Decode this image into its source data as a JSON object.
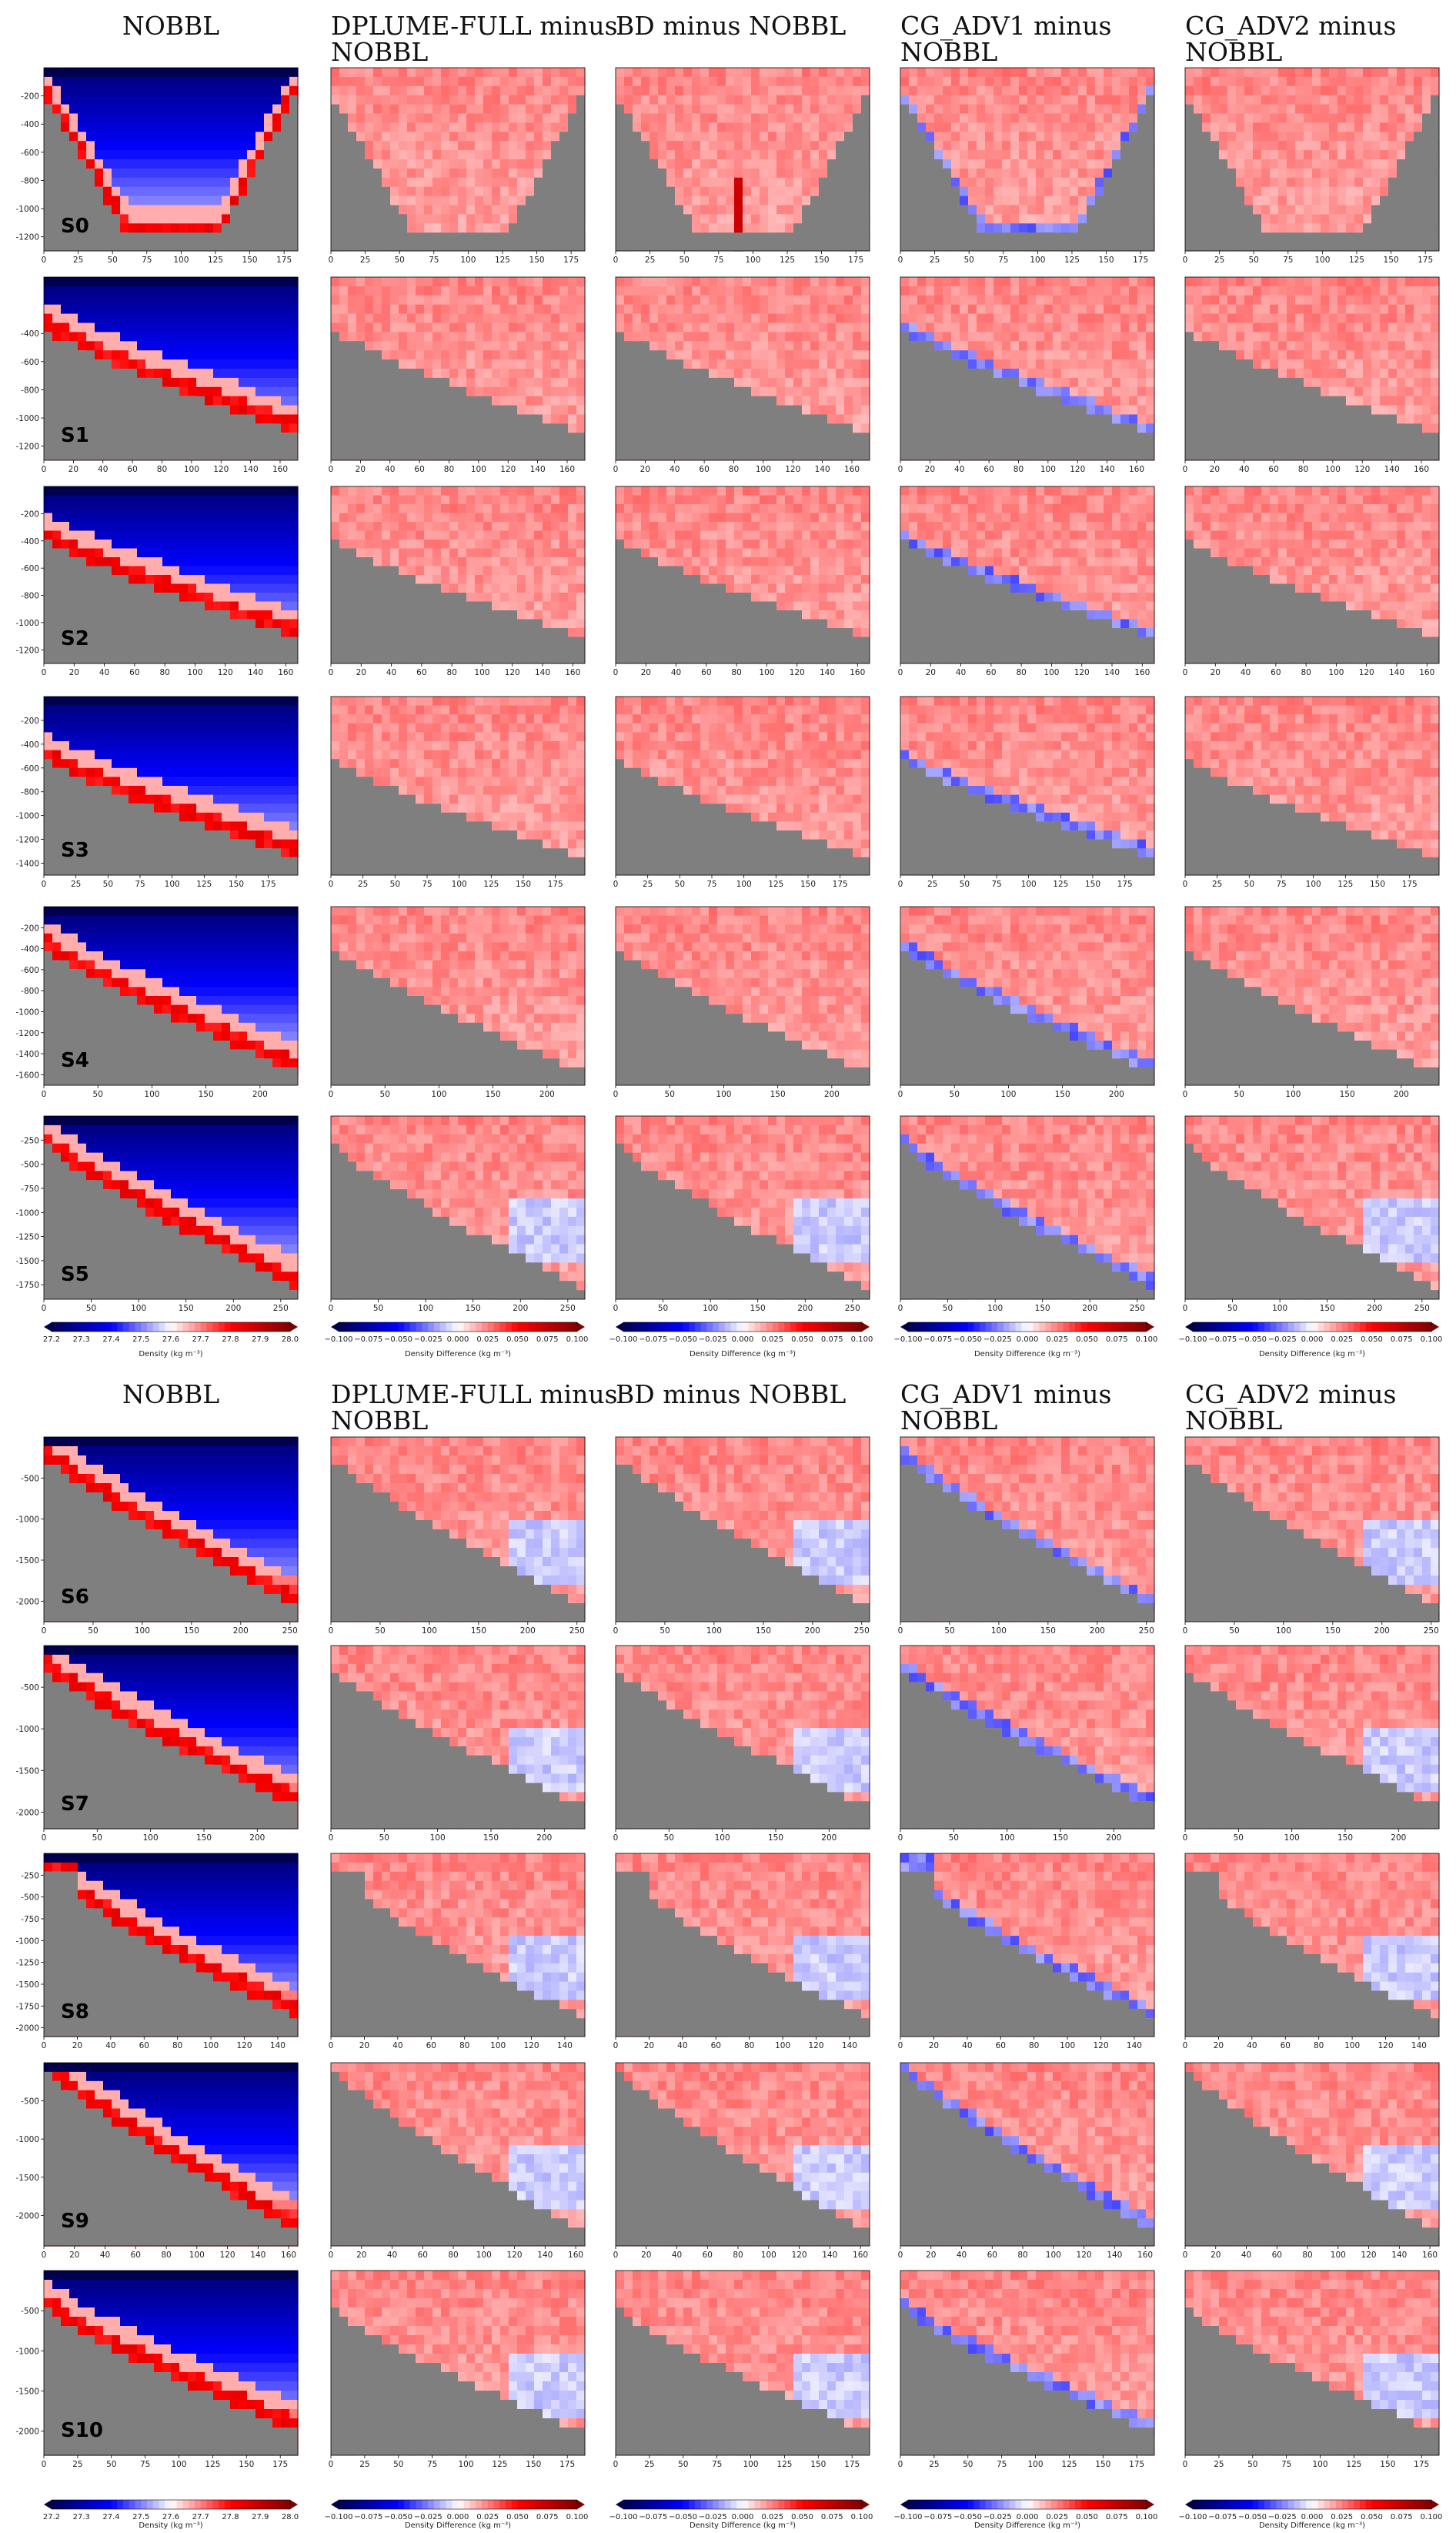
{
  "chart_data": {
    "type": "heatmap",
    "column_titles": [
      [
        "NOBBL"
      ],
      [
        "DPLUME-FULL   minus",
        "NOBBL"
      ],
      [
        "BD minus NOBBL"
      ],
      [
        "CG_ADV1              minus",
        "NOBBL"
      ],
      [
        "CG_ADV2              minus",
        "NOBBL"
      ]
    ],
    "colorbars": {
      "density": {
        "label": "Density (kg m⁻³)",
        "ticks": [
          "27.2",
          "27.3",
          "27.4",
          "27.5",
          "27.6",
          "27.7",
          "27.8",
          "27.9",
          "28.0"
        ],
        "range": [
          27.2,
          28.0
        ],
        "colormap": "seismic"
      },
      "difference": {
        "label": "Density Difference (kg m⁻³)",
        "ticks": [
          "−0.100",
          "−0.075",
          "−0.050",
          "−0.025",
          "0.000",
          "0.025",
          "0.050",
          "0.075",
          "0.100"
        ],
        "range": [
          -0.1,
          0.1
        ],
        "colormap": "seismic"
      }
    },
    "colors": {
      "topography": "#7f7f7f",
      "negative": "#0000ff",
      "positive": "#ff0000"
    },
    "panels": [
      {
        "name": "S0",
        "xticks": [
          "0",
          "25",
          "50",
          "75",
          "100",
          "125",
          "150",
          "175"
        ],
        "xmax": 185,
        "yticks": [
          "-200",
          "-400",
          "-600",
          "-800",
          "-1000",
          "-1200"
        ],
        "ymin": -1300
      },
      {
        "name": "S1",
        "xticks": [
          "0",
          "20",
          "40",
          "60",
          "80",
          "100",
          "120",
          "140",
          "160"
        ],
        "xmax": 172,
        "yticks": [
          "-400",
          "-600",
          "-800",
          "-1000",
          "-1200"
        ],
        "ymin": -1300
      },
      {
        "name": "S2",
        "xticks": [
          "0",
          "20",
          "40",
          "60",
          "80",
          "100",
          "120",
          "140",
          "160"
        ],
        "xmax": 168,
        "yticks": [
          "-200",
          "-400",
          "-600",
          "-800",
          "-1000",
          "-1200"
        ],
        "ymin": -1300
      },
      {
        "name": "S3",
        "xticks": [
          "0",
          "25",
          "50",
          "75",
          "100",
          "125",
          "150",
          "175"
        ],
        "xmax": 198,
        "yticks": [
          "-200",
          "-400",
          "-600",
          "-800",
          "-1000",
          "-1200",
          "-1400"
        ],
        "ymin": -1500
      },
      {
        "name": "S4",
        "xticks": [
          "0",
          "50",
          "100",
          "150",
          "200"
        ],
        "xmax": 235,
        "yticks": [
          "-200",
          "-400",
          "-600",
          "-800",
          "-1000",
          "-1200",
          "-1400",
          "-1600"
        ],
        "ymin": -1700
      },
      {
        "name": "S5",
        "xticks": [
          "0",
          "50",
          "100",
          "150",
          "200",
          "250"
        ],
        "xmax": 268,
        "yticks": [
          "-250",
          "-500",
          "-750",
          "-1000",
          "-1250",
          "-1500",
          "-1750"
        ],
        "ymin": -1900
      },
      {
        "name": "S6",
        "xticks": [
          "0",
          "50",
          "100",
          "150",
          "200",
          "250"
        ],
        "xmax": 258,
        "yticks": [
          "-500",
          "-1000",
          "-1500",
          "-2000"
        ],
        "ymin": -2250
      },
      {
        "name": "S7",
        "xticks": [
          "0",
          "50",
          "100",
          "150",
          "200"
        ],
        "xmax": 238,
        "yticks": [
          "-500",
          "-1000",
          "-1500",
          "-2000"
        ],
        "ymin": -2200
      },
      {
        "name": "S8",
        "xticks": [
          "0",
          "20",
          "40",
          "60",
          "80",
          "100",
          "120",
          "140"
        ],
        "xmax": 152,
        "yticks": [
          "-250",
          "-500",
          "-750",
          "-1000",
          "-1250",
          "-1500",
          "-1750",
          "-2000"
        ],
        "ymin": -2100
      },
      {
        "name": "S9",
        "xticks": [
          "0",
          "20",
          "40",
          "60",
          "80",
          "100",
          "120",
          "140",
          "160"
        ],
        "xmax": 166,
        "yticks": [
          "-500",
          "-1000",
          "-1500",
          "-2000"
        ],
        "ymin": -2400
      },
      {
        "name": "S10",
        "xticks": [
          "0",
          "25",
          "50",
          "75",
          "100",
          "125",
          "150",
          "175"
        ],
        "xmax": 188,
        "yticks": [
          "-500",
          "-1000",
          "-1500",
          "-2000"
        ],
        "ymin": -2300
      }
    ]
  }
}
